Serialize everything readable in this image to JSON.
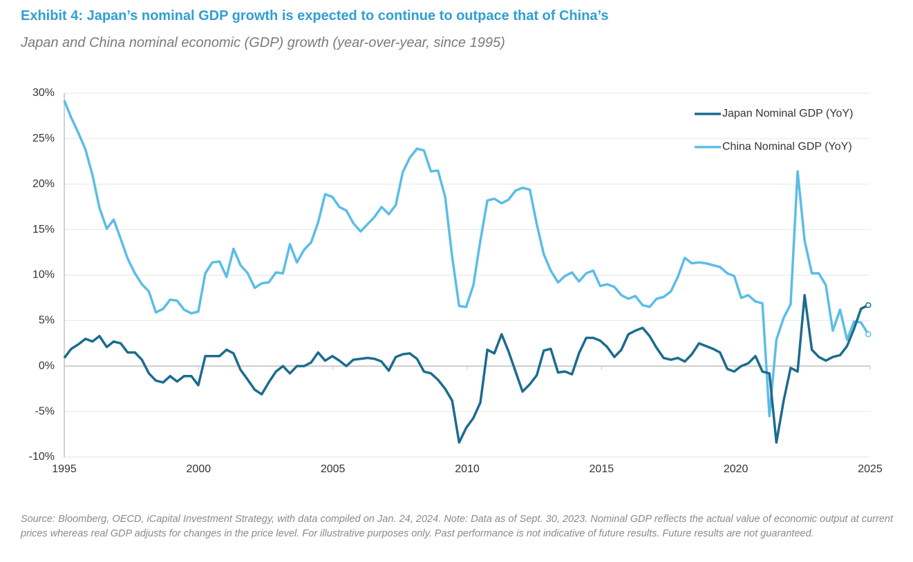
{
  "chart_data": {
    "type": "line",
    "title": "Exhibit 4: Japan’s nominal GDP growth is expected to continue to outpace that of China’s",
    "subtitle": "Japan and China nominal economic (GDP) growth (year-over-year, since 1995)",
    "source": "Source: Bloomberg, OECD, iCapital Investment Strategy, with data compiled on Jan. 24, 2024. Note: Data as of Sept. 30, 2023. Nominal GDP reflects the actual value of economic output at current prices whereas real GDP adjusts for changes in the price level. For illustrative purposes only. Past performance is not indicative of future results. Future results are not guaranteed.",
    "legend": "upper right",
    "grid": true,
    "xlim": [
      1995,
      2025
    ],
    "xticks": [
      1995,
      2000,
      2005,
      2010,
      2015,
      2020,
      2025
    ],
    "ylim": [
      -10,
      30
    ],
    "yticks": [
      {
        "value": -10,
        "label": "-10%"
      },
      {
        "value": -5,
        "label": "-5%"
      },
      {
        "value": 0,
        "label": "0%"
      },
      {
        "value": 5,
        "label": "5%"
      },
      {
        "value": 10,
        "label": "10%"
      },
      {
        "value": 15,
        "label": "15%"
      },
      {
        "value": 20,
        "label": "20%"
      },
      {
        "value": 25,
        "label": "25%"
      },
      {
        "value": 30,
        "label": "30%"
      }
    ],
    "x": [
      1995,
      1995.26,
      1995.53,
      1995.79,
      1996.05,
      1996.31,
      1996.58,
      1996.84,
      1997.1,
      1997.36,
      1997.63,
      1997.89,
      1998.15,
      1998.41,
      1998.68,
      1998.94,
      1999.2,
      1999.46,
      1999.73,
      1999.99,
      2000.25,
      2000.51,
      2000.78,
      2001.04,
      2001.3,
      2001.56,
      2001.83,
      2002.09,
      2002.35,
      2002.61,
      2002.88,
      2003.14,
      2003.4,
      2003.66,
      2003.93,
      2004.19,
      2004.45,
      2004.71,
      2004.98,
      2005.24,
      2005.5,
      2005.76,
      2006.03,
      2006.29,
      2006.55,
      2006.81,
      2007.08,
      2007.34,
      2007.6,
      2007.86,
      2008.13,
      2008.39,
      2008.65,
      2008.91,
      2009.18,
      2009.44,
      2009.7,
      2009.96,
      2010.23,
      2010.49,
      2010.75,
      2011.01,
      2011.28,
      2011.54,
      2011.8,
      2012.06,
      2012.33,
      2012.59,
      2012.85,
      2013.11,
      2013.38,
      2013.64,
      2013.9,
      2014.16,
      2014.43,
      2014.69,
      2014.95,
      2015.21,
      2015.48,
      2015.74,
      2016,
      2016.26,
      2016.53,
      2016.79,
      2017.05,
      2017.31,
      2017.58,
      2017.84,
      2018.1,
      2018.36,
      2018.63,
      2018.89,
      2019.15,
      2019.41,
      2019.68,
      2019.94,
      2020.2,
      2020.46,
      2020.73,
      2020.99,
      2021.25,
      2021.51,
      2021.78,
      2022.04,
      2022.3,
      2022.56,
      2022.83,
      2023.09,
      2023.35,
      2023.61,
      2023.88,
      2024.14,
      2024.4,
      2024.66,
      2024.93
    ],
    "series": [
      {
        "name": "Japan Nominal GDP (YoY)",
        "color": "#1c6b8f",
        "values": [
          0.9,
          1.9,
          2.4,
          3.0,
          2.7,
          3.3,
          2.1,
          2.7,
          2.5,
          1.5,
          1.5,
          0.7,
          -0.8,
          -1.6,
          -1.8,
          -1.1,
          -1.7,
          -1.1,
          -1.1,
          -2.1,
          1.1,
          1.1,
          1.1,
          1.8,
          1.4,
          -0.4,
          -1.5,
          -2.6,
          -3.1,
          -1.8,
          -0.6,
          0.0,
          -0.8,
          0.0,
          0.0,
          0.4,
          1.5,
          0.6,
          1.1,
          0.6,
          0.0,
          0.7,
          0.8,
          0.9,
          0.8,
          0.5,
          -0.5,
          1.0,
          1.3,
          1.4,
          0.8,
          -0.6,
          -0.8,
          -1.5,
          -2.5,
          -3.8,
          -8.4,
          -6.8,
          -5.7,
          -4.0,
          1.8,
          1.4,
          3.5,
          1.6,
          -0.6,
          -2.8,
          -2.0,
          -1.0,
          1.7,
          1.9,
          -0.7,
          -0.6,
          -0.9,
          1.4,
          3.1,
          3.1,
          2.8,
          2.1,
          1.0,
          1.8,
          3.5,
          3.9,
          4.2,
          3.3,
          2.0,
          0.9,
          0.7,
          0.9,
          0.5,
          1.3,
          2.5,
          2.2,
          1.9,
          1.5,
          -0.3,
          -0.6,
          0.0,
          0.3,
          1.1,
          -0.6,
          -0.8,
          -8.4,
          -3.8,
          -0.2,
          -0.6,
          7.8,
          1.8,
          1.0,
          0.6,
          1.0,
          1.2,
          2.2,
          4.1,
          6.3,
          6.7
        ]
      },
      {
        "name": "China Nominal GDP (YoY)",
        "color": "#5bbde6",
        "values": [
          29.2,
          27.3,
          25.6,
          23.8,
          21.0,
          17.4,
          15.1,
          16.1,
          14.0,
          11.8,
          10.2,
          9.0,
          8.2,
          5.9,
          6.3,
          7.3,
          7.2,
          6.2,
          5.8,
          6.0,
          10.2,
          11.4,
          11.5,
          9.8,
          12.9,
          11.1,
          10.2,
          8.6,
          9.1,
          9.2,
          10.3,
          10.2,
          13.4,
          11.4,
          12.8,
          13.6,
          15.8,
          18.9,
          18.6,
          17.5,
          17.1,
          15.7,
          14.8,
          15.6,
          16.4,
          17.5,
          16.7,
          17.7,
          21.3,
          22.9,
          23.9,
          23.7,
          21.4,
          21.5,
          18.6,
          12.0,
          6.6,
          6.5,
          8.9,
          13.8,
          18.2,
          18.4,
          17.9,
          18.3,
          19.3,
          19.6,
          19.4,
          15.6,
          12.3,
          10.5,
          9.2,
          9.9,
          10.3,
          9.3,
          10.2,
          10.5,
          8.8,
          9.0,
          8.7,
          7.8,
          7.4,
          7.7,
          6.7,
          6.5,
          7.4,
          7.6,
          8.2,
          9.8,
          11.9,
          11.3,
          11.4,
          11.3,
          11.1,
          10.9,
          10.2,
          9.9,
          7.5,
          7.8,
          7.1,
          6.9,
          -5.5,
          2.9,
          5.3,
          6.8,
          21.4,
          13.8,
          10.2,
          10.2,
          8.9,
          3.9,
          6.2,
          2.9,
          4.9,
          4.8,
          3.5
        ]
      }
    ]
  }
}
